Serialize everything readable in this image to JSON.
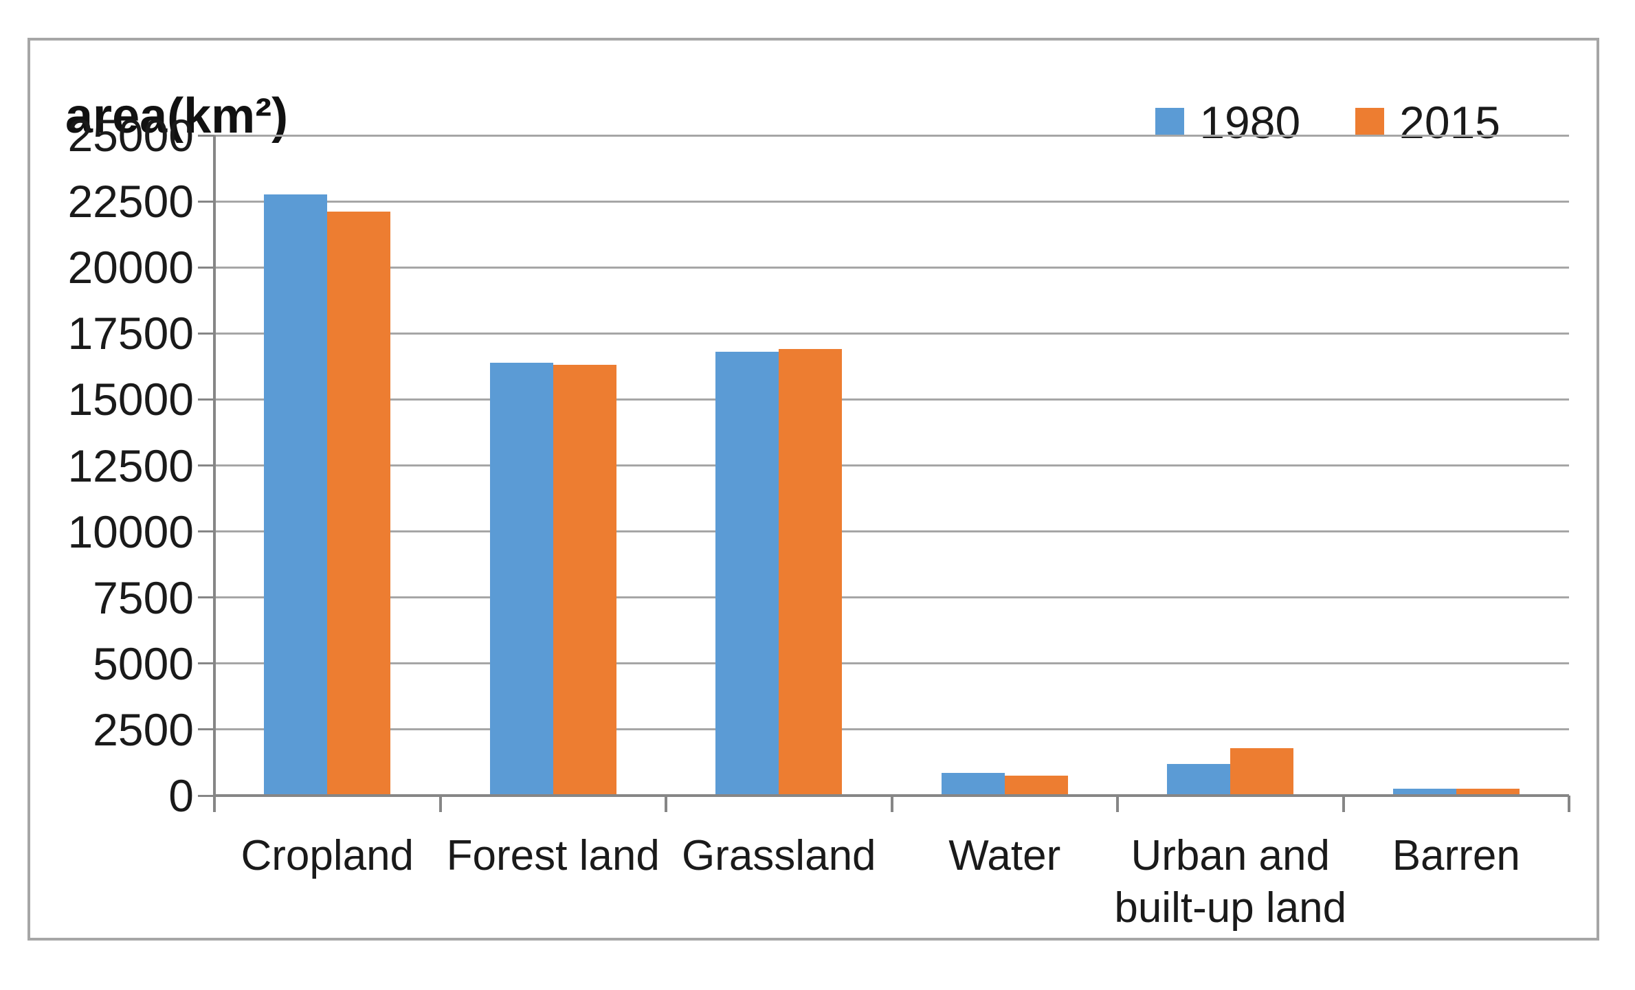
{
  "chart_data": {
    "type": "bar",
    "title": "area(km²)",
    "categories": [
      "Cropland",
      "Forest land",
      "Grassland",
      "Water",
      "Urban and built-up land",
      "Barren"
    ],
    "series": [
      {
        "name": "1980",
        "color": "#5B9BD5",
        "values": [
          22750,
          16400,
          16800,
          850,
          1200,
          250
        ]
      },
      {
        "name": "2015",
        "color": "#ED7D31",
        "values": [
          22100,
          16300,
          16900,
          750,
          1800,
          250
        ]
      }
    ],
    "xlabel": "",
    "ylabel": "area(km²)",
    "ylim": [
      0,
      25000
    ],
    "ytick_step": 2500,
    "yticks": [
      0,
      2500,
      5000,
      7500,
      10000,
      12500,
      15000,
      17500,
      20000,
      22500,
      25000
    ],
    "grid": true,
    "legend_position": "top-right",
    "colors": {
      "series_1980": "#5B9BD5",
      "series_2015": "#ED7D31",
      "gridline": "#A6A6A6",
      "axis": "#868686",
      "frame_border": "#A6A6A6",
      "text": "#1A1A1A",
      "background": "#FFFFFF"
    }
  }
}
